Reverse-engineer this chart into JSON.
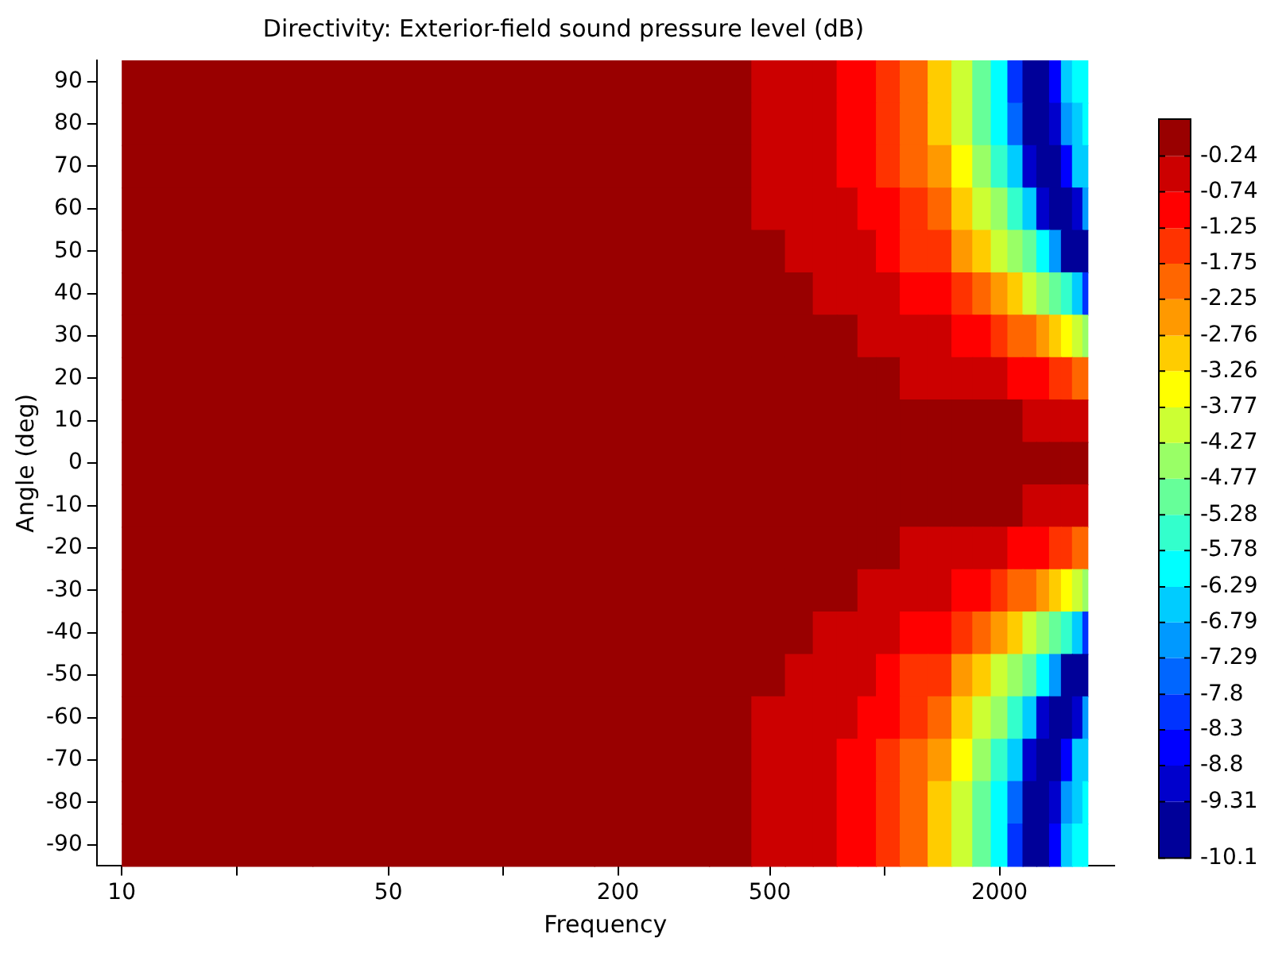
{
  "chart_data": {
    "type": "heatmap",
    "title": "Directivity: Exterior-field sound pressure level (dB)",
    "xlabel": "Frequency",
    "ylabel": "Angle (deg)",
    "log": "x",
    "grid": false,
    "legend": false,
    "xlim": [
      8.6,
      4000
    ],
    "xticks": [
      10,
      {
        "value": 20,
        "label": null
      },
      50,
      {
        "value": 100,
        "label": null
      },
      200,
      500,
      {
        "value": 1000,
        "label": null
      },
      2000
    ],
    "clim": [
      -10.1,
      0.28
    ],
    "cticks": [
      -10.1,
      -9.31,
      -8.8,
      -8.3,
      -7.8,
      -7.29,
      -6.79,
      -6.29,
      -5.78,
      -5.28,
      -4.77,
      -4.27,
      -3.77,
      -3.26,
      -2.76,
      -2.25,
      -1.75,
      -1.25,
      -0.74,
      -0.24
    ],
    "x": [
      10,
      100,
      300,
      400,
      500,
      600,
      700,
      800,
      900,
      1000,
      1200,
      1400,
      1600,
      1800,
      2000,
      2200,
      2400,
      2600,
      2800,
      3000,
      3200,
      3400
    ],
    "y_categories": [
      "90",
      "80",
      "70",
      "60",
      "50",
      "40",
      "30",
      "20",
      "10",
      "0",
      "-10",
      "-20",
      "-30",
      "-40",
      "-50",
      "-60",
      "-70",
      "-80",
      "-90"
    ],
    "cells": [
      [
        0,
        0,
        0,
        -0.2,
        -0.4,
        -0.57,
        -0.73,
        -0.97,
        -1.22,
        -1.5,
        -2.17,
        -3.12,
        -4.13,
        -5.01,
        -6,
        -8.1,
        -9.7,
        -9.75,
        -8.5,
        -6.5,
        -6.25,
        -6
      ],
      [
        0,
        0,
        0,
        -0.2,
        -0.39,
        -0.55,
        -0.72,
        -0.94,
        -1.19,
        -1.46,
        -2.1,
        -3,
        -4.02,
        -4.9,
        -5.84,
        -7.6,
        -9.6,
        -9.85,
        -8.9,
        -7,
        -6.3,
        -6.1
      ],
      [
        0,
        0,
        0,
        -0.1,
        -0.36,
        -0.51,
        -0.67,
        -0.86,
        -1.09,
        -1.33,
        -1.91,
        -2.66,
        -3.67,
        -4.55,
        -5.33,
        -6.5,
        -9.1,
        -9.8,
        -9.7,
        -8.3,
        -6.5,
        -6.3
      ],
      [
        0,
        0,
        0,
        -0.05,
        -0.29,
        -0.44,
        -0.58,
        -0.72,
        -0.93,
        -1.13,
        -1.62,
        -2.21,
        -3.04,
        -3.93,
        -4.73,
        -5.47,
        -6.6,
        -9,
        -9.8,
        -9.8,
        -8.8,
        -7.1
      ],
      [
        0,
        0,
        0,
        0,
        -0.1,
        -0.34,
        -0.46,
        -0.59,
        -0.72,
        -0.89,
        -1.26,
        -1.72,
        -2.26,
        -3,
        -3.81,
        -4.52,
        -5.15,
        -5.96,
        -7.2,
        -9.4,
        -9.85,
        -9.75
      ],
      [
        0,
        0,
        0,
        0,
        0,
        -0.1,
        -0.32,
        -0.43,
        -0.54,
        -0.64,
        -0.91,
        -1.22,
        -1.59,
        -2.01,
        -2.52,
        -3.21,
        -3.86,
        -4.46,
        -5,
        -5.61,
        -6.36,
        -7.9
      ],
      [
        0,
        0,
        0,
        0,
        0,
        0,
        -0.05,
        -0.2,
        -0.32,
        -0.4,
        -0.57,
        -0.73,
        -0.97,
        -1.22,
        -1.5,
        -1.8,
        -2.17,
        -2.59,
        -3.12,
        -3.65,
        -4.13,
        -4.59
      ],
      [
        0,
        0,
        0,
        0,
        0,
        0,
        0,
        0,
        0,
        0,
        -0.26,
        -0.37,
        -0.48,
        -0.6,
        -0.71,
        -0.86,
        -1.02,
        -1.19,
        -1.38,
        -1.58,
        -1.79,
        -2.03
      ],
      [
        0,
        0,
        0,
        0,
        0,
        0,
        0,
        0,
        0,
        0,
        0,
        0,
        0,
        0,
        0,
        0,
        -0.27,
        -0.33,
        -0.38,
        -0.44,
        -0.5,
        -0.56
      ],
      [
        0,
        0,
        0,
        0,
        0,
        0,
        0,
        0,
        0,
        0,
        0,
        0,
        0,
        0,
        0,
        0,
        0,
        0,
        0,
        0,
        0,
        0
      ],
      [
        0,
        0,
        0,
        0,
        0,
        0,
        0,
        0,
        0,
        0,
        0,
        0,
        0,
        0,
        0,
        0,
        -0.27,
        -0.33,
        -0.38,
        -0.44,
        -0.5,
        -0.56
      ],
      [
        0,
        0,
        0,
        0,
        0,
        0,
        0,
        0,
        0,
        0,
        -0.26,
        -0.37,
        -0.48,
        -0.6,
        -0.71,
        -0.86,
        -1.02,
        -1.19,
        -1.38,
        -1.58,
        -1.79,
        -2.03
      ],
      [
        0,
        0,
        0,
        0,
        0,
        0,
        -0.05,
        -0.2,
        -0.32,
        -0.4,
        -0.57,
        -0.73,
        -0.97,
        -1.22,
        -1.5,
        -1.8,
        -2.17,
        -2.59,
        -3.12,
        -3.65,
        -4.13,
        -4.59
      ],
      [
        0,
        0,
        0,
        0,
        0,
        -0.1,
        -0.32,
        -0.43,
        -0.54,
        -0.64,
        -0.91,
        -1.22,
        -1.59,
        -2.01,
        -2.52,
        -3.21,
        -3.86,
        -4.46,
        -5,
        -5.61,
        -6.36,
        -7.9
      ],
      [
        0,
        0,
        0,
        0,
        -0.1,
        -0.34,
        -0.46,
        -0.59,
        -0.72,
        -0.89,
        -1.26,
        -1.72,
        -2.26,
        -3,
        -3.81,
        -4.52,
        -5.15,
        -5.96,
        -7.2,
        -9.4,
        -9.85,
        -9.75
      ],
      [
        0,
        0,
        0,
        -0.05,
        -0.29,
        -0.44,
        -0.58,
        -0.72,
        -0.93,
        -1.13,
        -1.62,
        -2.21,
        -3.04,
        -3.93,
        -4.73,
        -5.47,
        -6.6,
        -9,
        -9.8,
        -9.8,
        -8.8,
        -7.1
      ],
      [
        0,
        0,
        0,
        -0.1,
        -0.36,
        -0.51,
        -0.67,
        -0.86,
        -1.09,
        -1.33,
        -1.91,
        -2.66,
        -3.67,
        -4.55,
        -5.33,
        -6.5,
        -9.1,
        -9.8,
        -9.7,
        -8.3,
        -6.5,
        -6.3
      ],
      [
        0,
        0,
        0,
        -0.2,
        -0.39,
        -0.55,
        -0.72,
        -0.94,
        -1.19,
        -1.46,
        -2.1,
        -3,
        -4.02,
        -4.9,
        -5.84,
        -7.6,
        -9.6,
        -9.85,
        -8.9,
        -7,
        -6.3,
        -6.1
      ],
      [
        0,
        0,
        0,
        -0.2,
        -0.4,
        -0.57,
        -0.73,
        -0.97,
        -1.22,
        -1.5,
        -2.17,
        -3.12,
        -4.13,
        -5.01,
        -6,
        -8.1,
        -9.7,
        -9.75,
        -8.5,
        -6.5,
        -6.25,
        -6
      ]
    ]
  }
}
